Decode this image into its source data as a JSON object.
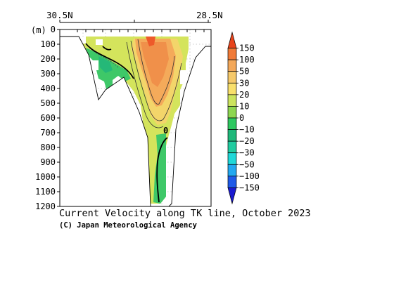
{
  "chart_data": {
    "type": "heatmap",
    "title": "Current Velocity along TK line, October 2023",
    "credit": "(C) Japan Meteorological Agency",
    "x_axis": {
      "top_labels": [
        "30.5N",
        "28.5N"
      ],
      "range": [
        "30.5N",
        "28.5N"
      ]
    },
    "y_axis": {
      "unit_label": "(m)",
      "ticks": [
        0,
        100,
        200,
        300,
        400,
        500,
        600,
        700,
        800,
        900,
        1000,
        1100,
        1200
      ],
      "range": [
        0,
        1200
      ],
      "inverted": true
    },
    "grid": true,
    "colorbar": {
      "position": "right",
      "labels": [
        "150",
        "100",
        "50",
        "30",
        "20",
        "10",
        "0",
        "−10",
        "−20",
        "−30",
        "−50",
        "−100",
        "−150"
      ],
      "colors": [
        "#e8441c",
        "#f07a38",
        "#f3a85a",
        "#f6c96a",
        "#f9e06c",
        "#cce45e",
        "#8ed650",
        "#2ec860",
        "#1fb87a",
        "#20cca0",
        "#1fd8d8",
        "#22a8f0",
        "#1e5ae8",
        "#1a1ad0"
      ]
    },
    "contour_labels": [
      {
        "value": "0"
      }
    ],
    "fields": [
      {
        "name": "positive core (orange)",
        "value_range": [
          30,
          150
        ]
      },
      {
        "name": "moderate eastward (yellow)",
        "value_range": [
          10,
          30
        ]
      },
      {
        "name": "weak (yellow-green)",
        "value_range": [
          0,
          10
        ]
      },
      {
        "name": "westward (green)",
        "value_range": [
          -20,
          0
        ]
      }
    ]
  }
}
